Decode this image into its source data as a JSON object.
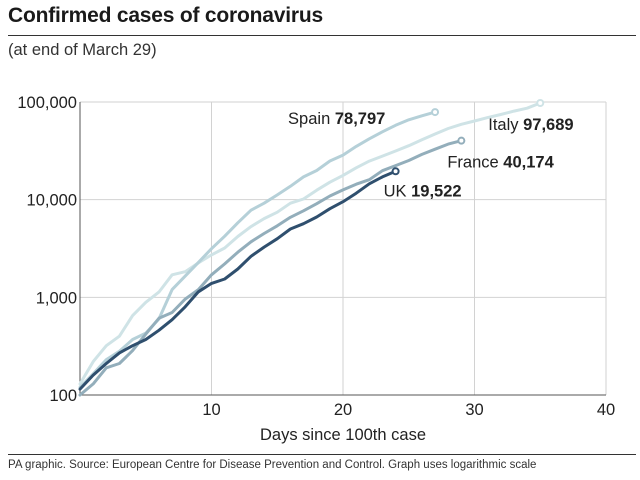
{
  "title": "Confirmed cases of coronavirus",
  "subtitle": "(at end of March 29)",
  "footer": "PA graphic. Source: European Centre for Disease Prevention and Control. Graph uses logarithmic scale",
  "chart_data": {
    "type": "line",
    "xlabel": "Days since 100th case",
    "ylabel": "",
    "yscale": "log",
    "xlim": [
      0,
      40
    ],
    "ylim": [
      100,
      100000
    ],
    "xticks": [
      10,
      20,
      30,
      40
    ],
    "yticks": [
      100,
      1000,
      10000,
      100000
    ],
    "ytick_labels": [
      "100",
      "1,000",
      "10,000",
      "100,000"
    ],
    "grid": "horizontal and vertical",
    "series": [
      {
        "name": "Italy",
        "value_label": "97,689",
        "color": "#cfe3e6",
        "x": [
          0,
          1,
          2,
          3,
          4,
          5,
          6,
          7,
          8,
          9,
          10,
          11,
          12,
          13,
          14,
          15,
          16,
          17,
          18,
          19,
          20,
          21,
          22,
          23,
          24,
          25,
          26,
          27,
          28,
          29,
          30,
          31,
          32,
          33,
          34,
          35
        ],
        "y": [
          130,
          220,
          320,
          400,
          650,
          890,
          1130,
          1700,
          1830,
          2250,
          2720,
          3200,
          4200,
          5300,
          6400,
          7450,
          9200,
          10150,
          12500,
          15100,
          17700,
          21200,
          24800,
          27900,
          31500,
          35700,
          41000,
          47000,
          53600,
          59100,
          63900,
          69200,
          74400,
          80600,
          86500,
          97689
        ]
      },
      {
        "name": "Spain",
        "value_label": "78,797",
        "color": "#b5d0d8",
        "x": [
          0,
          1,
          2,
          3,
          4,
          5,
          6,
          7,
          8,
          9,
          10,
          11,
          12,
          13,
          14,
          15,
          16,
          17,
          18,
          19,
          20,
          21,
          22,
          23,
          24,
          25,
          26,
          27
        ],
        "y": [
          120,
          165,
          230,
          280,
          370,
          430,
          600,
          1200,
          1650,
          2280,
          3150,
          4230,
          5800,
          7800,
          9200,
          11200,
          13700,
          17100,
          19900,
          24900,
          28600,
          35100,
          42000,
          49500,
          57800,
          65700,
          72200,
          78797
        ]
      },
      {
        "name": "France",
        "value_label": "40,174",
        "color": "#93aebb",
        "x": [
          0,
          1,
          2,
          3,
          4,
          5,
          6,
          7,
          8,
          9,
          10,
          11,
          12,
          13,
          14,
          15,
          16,
          17,
          18,
          19,
          20,
          21,
          22,
          23,
          24,
          25,
          26,
          27,
          28,
          29
        ],
        "y": [
          100,
          130,
          190,
          210,
          285,
          420,
          610,
          700,
          960,
          1200,
          1700,
          2200,
          2900,
          3700,
          4500,
          5400,
          6600,
          7700,
          9100,
          10900,
          12600,
          14400,
          16000,
          19800,
          22300,
          25200,
          29100,
          32900,
          37100,
          40174
        ]
      },
      {
        "name": "UK",
        "value_label": "19,522",
        "color": "#2f4f6e",
        "x": [
          0,
          1,
          2,
          3,
          4,
          5,
          6,
          7,
          8,
          9,
          10,
          11,
          12,
          13,
          14,
          15,
          16,
          17,
          18,
          19,
          20,
          21,
          22,
          23,
          24
        ],
        "y": [
          115,
          160,
          210,
          270,
          320,
          370,
          460,
          590,
          800,
          1140,
          1390,
          1540,
          1950,
          2630,
          3270,
          3980,
          5010,
          5680,
          6650,
          8080,
          9530,
          11650,
          14540,
          17090,
          19522
        ]
      }
    ]
  }
}
